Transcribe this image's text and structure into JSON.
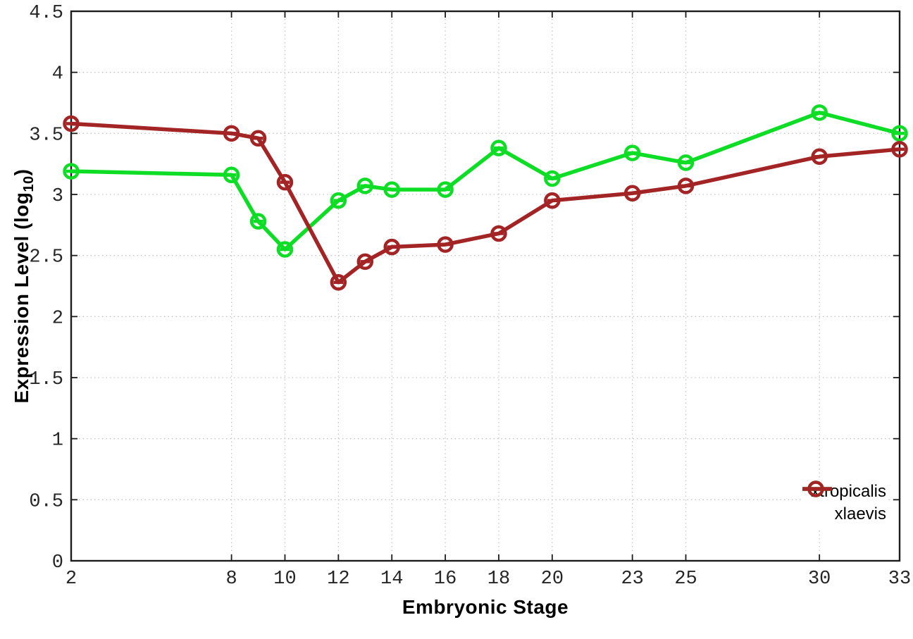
{
  "figure": {
    "xlabel": "Embryonic Stage",
    "ylabel_prefix": "Expression Level (log",
    "ylabel_sub": "10",
    "ylabel_suffix": ")"
  },
  "chart_data": {
    "type": "line",
    "title": "",
    "xlabel": "Embryonic Stage",
    "ylabel": "Expression Level (log10)",
    "x": [
      2,
      8,
      9,
      10,
      12,
      13,
      14,
      16,
      18,
      20,
      23,
      25,
      30,
      33
    ],
    "series": [
      {
        "name": "xtropicalis",
        "color": "#0edd26",
        "values": [
          3.19,
          3.16,
          2.78,
          2.55,
          2.95,
          3.07,
          3.04,
          3.04,
          3.38,
          3.13,
          3.34,
          3.26,
          3.67,
          3.5
        ]
      },
      {
        "name": "xlaevis",
        "color": "#a32424",
        "values": [
          3.58,
          3.5,
          3.46,
          3.1,
          2.28,
          2.45,
          2.57,
          2.59,
          2.68,
          2.95,
          3.01,
          3.07,
          3.31,
          3.37
        ]
      }
    ],
    "xlim": [
      2,
      33
    ],
    "ylim": [
      0,
      4.5
    ],
    "x_ticks": [
      2,
      8,
      10,
      12,
      14,
      16,
      18,
      20,
      23,
      25,
      30,
      33
    ],
    "x_tick_labels": [
      "2",
      "8",
      "10",
      "12",
      "14",
      "16",
      "18",
      "20",
      "23",
      "25",
      "30",
      "33"
    ],
    "y_ticks": [
      0,
      0.5,
      1,
      1.5,
      2,
      2.5,
      3,
      3.5,
      4,
      4.5
    ],
    "y_tick_labels": [
      "0",
      "0.5",
      "1",
      "1.5",
      "2",
      "2.5",
      "3",
      "3.5",
      "4",
      "4.5"
    ],
    "grid": true,
    "marker": "open-circle",
    "legend_position": "bottom-right",
    "colors": {
      "background": "#ffffff",
      "border": "#1c1c1c",
      "grid": "#c6c6c6",
      "tick_text": "#262626"
    }
  }
}
